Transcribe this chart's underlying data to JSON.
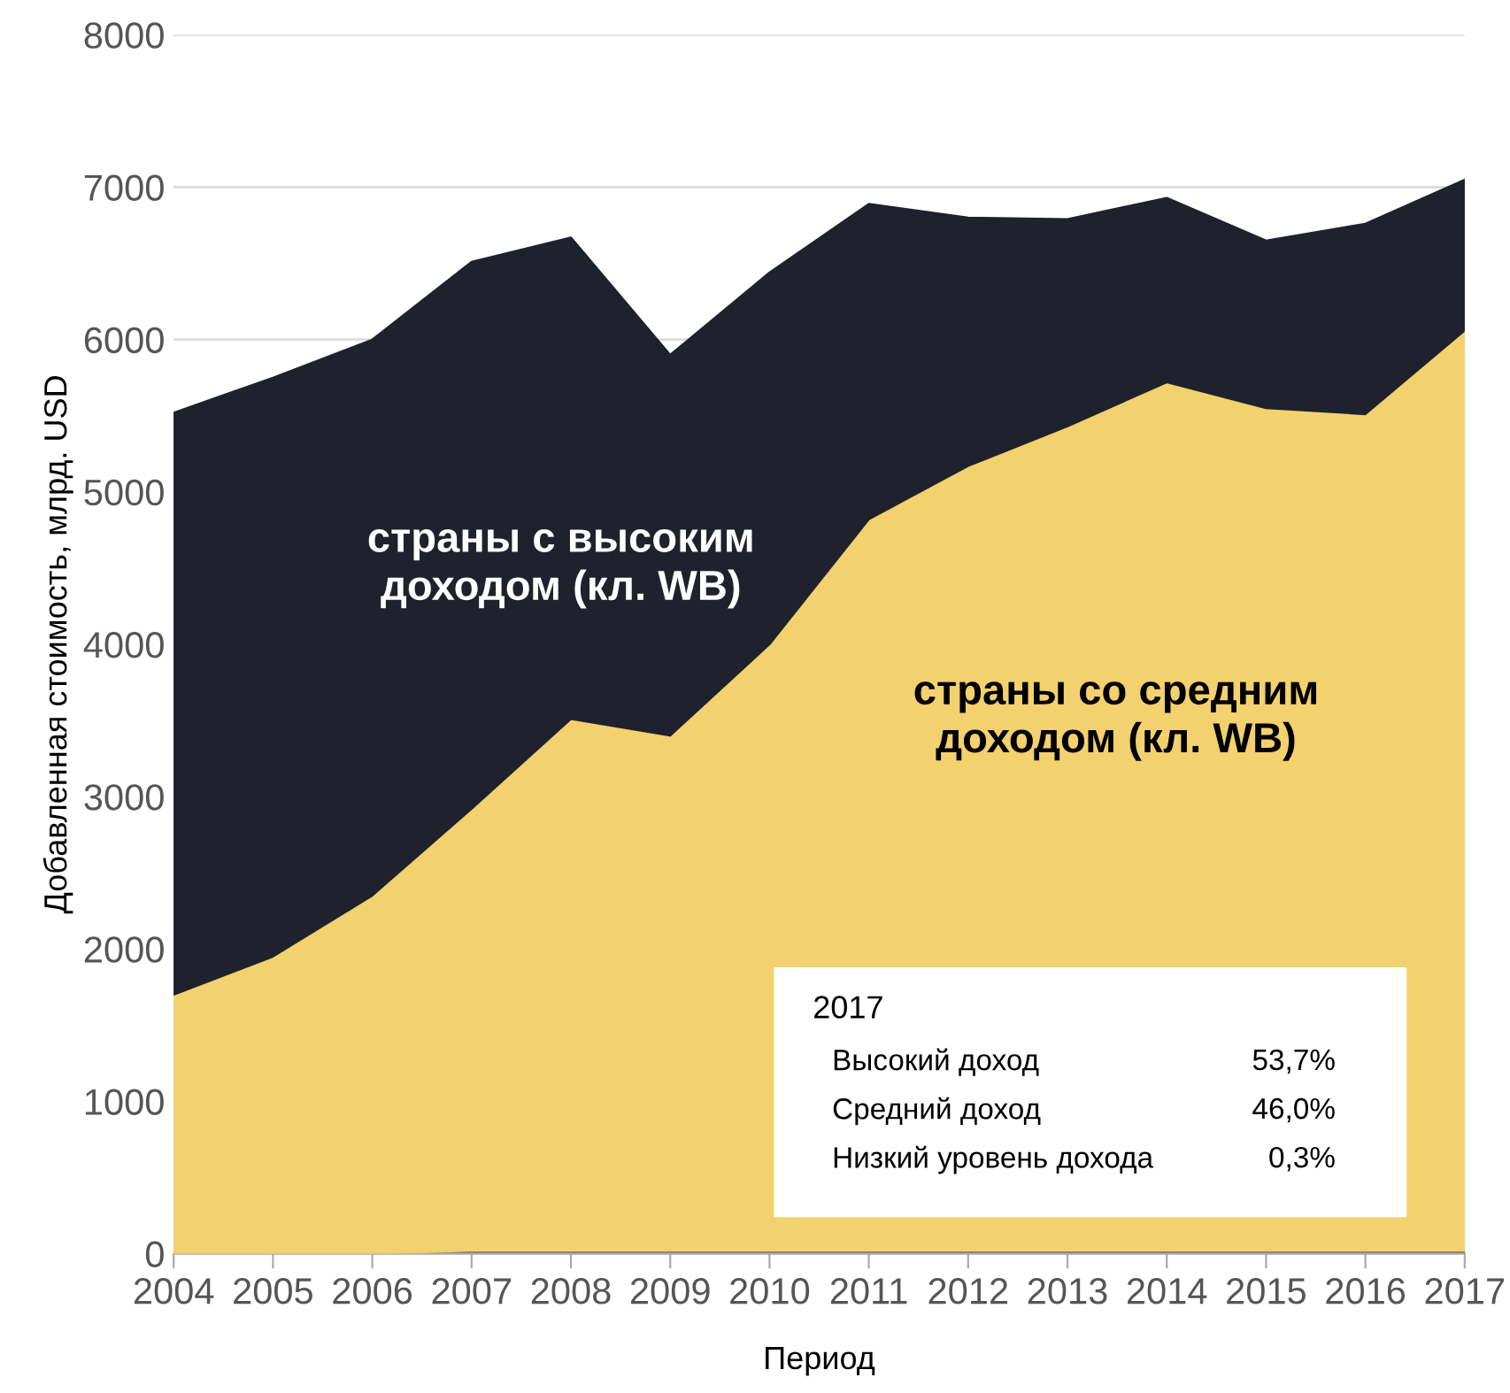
{
  "chart_data": {
    "type": "area",
    "stacked": true,
    "xlabel": "Период",
    "ylabel": "Добавленная стоимость, млрд. USD",
    "categories": [
      "2004",
      "2005",
      "2006",
      "2007",
      "2008",
      "2009",
      "2010",
      "2011",
      "2012",
      "2013",
      "2014",
      "2015",
      "2016",
      "2017"
    ],
    "series": [
      {
        "color": "#6b6b6b",
        "values": [
          0,
          0,
          0,
          20,
          20,
          20,
          20,
          20,
          20,
          20,
          20,
          20,
          20,
          20
        ]
      },
      {
        "name": "страны со средним\nдоходом (кл. WB)",
        "color": "#f2d16e",
        "values": [
          1700,
          1950,
          2350,
          2900,
          3490,
          3380,
          3980,
          4800,
          5150,
          5410,
          5700,
          5530,
          5490,
          6040
        ]
      },
      {
        "name": "страны с высоким\nдоходом (кл. WB)",
        "color": "#1f222c",
        "values": [
          3820,
          3800,
          3650,
          3590,
          3160,
          2500,
          2440,
          2070,
          1630,
          1360,
          1210,
          1100,
          1250,
          990
        ]
      }
    ],
    "ylim": [
      0,
      8000
    ],
    "yticks": [
      0,
      1000,
      2000,
      3000,
      4000,
      5000,
      6000,
      7000,
      8000
    ],
    "grid": "y",
    "legend": false,
    "annotations": [
      "2017",
      "Высокий доход",
      "53,7%",
      "Средний доход",
      "46,0%",
      "Низкий уровень дохода",
      "0,3%"
    ]
  }
}
